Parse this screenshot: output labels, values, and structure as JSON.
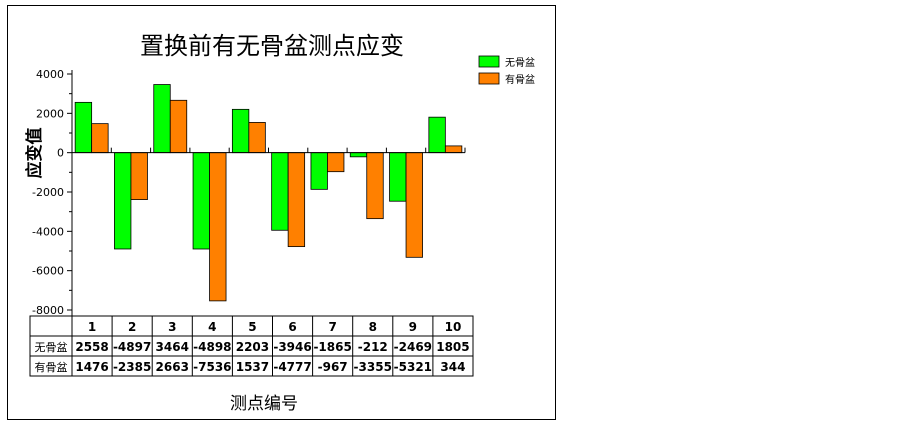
{
  "chart_data": {
    "type": "bar",
    "title": "置换前有无骨盆测点应变",
    "xlabel": "测点编号",
    "ylabel": "应变值",
    "categories": [
      "1",
      "2",
      "3",
      "4",
      "5",
      "6",
      "7",
      "8",
      "9",
      "10"
    ],
    "series": [
      {
        "name": "无骨盆",
        "color": "#00ff00",
        "values": [
          2558,
          -4897,
          3464,
          -4898,
          2203,
          -3946,
          -1865,
          -212,
          -2469,
          1805
        ]
      },
      {
        "name": "有骨盆",
        "color": "#ff8000",
        "values": [
          1476,
          -2385,
          2663,
          -7536,
          1537,
          -4777,
          -967,
          -3355,
          -5321,
          344
        ]
      }
    ],
    "ylim": [
      -8000,
      4000
    ],
    "yticks": [
      "4000",
      "2000",
      "0",
      "-2000",
      "-4000",
      "-6000",
      "-8000"
    ],
    "legend_position": "top-right",
    "grid": false,
    "data_table": true
  }
}
